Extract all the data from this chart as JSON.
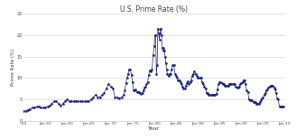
{
  "title": "U.S. Prime Rate (%)",
  "xlabel": "Year",
  "ylabel": "Prime Rate (%)",
  "line_color": "#1a237e",
  "bg_color": "#ffffff",
  "marker": ".",
  "markersize": 1.8,
  "linewidth": 0.5,
  "xlim_year": [
    1950,
    2010
  ],
  "ylim": [
    0,
    25
  ],
  "yticks": [
    0,
    5,
    10,
    15,
    20,
    25
  ],
  "xtick_years": [
    1950,
    1955,
    1960,
    1965,
    1970,
    1975,
    1980,
    1985,
    1990,
    1995,
    2000,
    2005,
    2010
  ],
  "xtick_labels": [
    "-50",
    "Jan-55",
    "Jan-60",
    "Jan-65",
    "Jan-70",
    "Jan-75",
    "Jan-80",
    "Jan-85",
    "Jan-90",
    "Jan-95",
    "Jan-00",
    "Jan-05",
    "Jan-10"
  ],
  "data": [
    [
      1950.0,
      2.25
    ],
    [
      1950.5,
      2.25
    ],
    [
      1951.0,
      2.5
    ],
    [
      1951.5,
      2.75
    ],
    [
      1952.0,
      3.0
    ],
    [
      1952.5,
      3.0
    ],
    [
      1953.0,
      3.25
    ],
    [
      1953.5,
      3.25
    ],
    [
      1954.0,
      3.0
    ],
    [
      1954.5,
      3.0
    ],
    [
      1955.0,
      3.0
    ],
    [
      1955.5,
      3.25
    ],
    [
      1956.0,
      3.5
    ],
    [
      1956.5,
      4.0
    ],
    [
      1957.0,
      4.5
    ],
    [
      1957.5,
      4.5
    ],
    [
      1958.0,
      4.0
    ],
    [
      1958.5,
      3.5
    ],
    [
      1959.0,
      4.0
    ],
    [
      1959.5,
      4.5
    ],
    [
      1960.0,
      5.0
    ],
    [
      1960.5,
      4.5
    ],
    [
      1961.0,
      4.5
    ],
    [
      1961.5,
      4.5
    ],
    [
      1962.0,
      4.5
    ],
    [
      1962.5,
      4.5
    ],
    [
      1963.0,
      4.5
    ],
    [
      1963.5,
      4.5
    ],
    [
      1964.0,
      4.5
    ],
    [
      1964.5,
      4.5
    ],
    [
      1965.0,
      4.5
    ],
    [
      1965.5,
      5.0
    ],
    [
      1966.0,
      5.5
    ],
    [
      1966.5,
      6.0
    ],
    [
      1967.0,
      5.5
    ],
    [
      1967.5,
      5.5
    ],
    [
      1968.0,
      6.0
    ],
    [
      1968.5,
      6.5
    ],
    [
      1969.0,
      7.5
    ],
    [
      1969.5,
      8.5
    ],
    [
      1970.0,
      8.0
    ],
    [
      1970.5,
      7.5
    ],
    [
      1971.0,
      5.5
    ],
    [
      1971.5,
      5.5
    ],
    [
      1972.0,
      5.25
    ],
    [
      1972.5,
      5.5
    ],
    [
      1973.0,
      6.0
    ],
    [
      1973.25,
      7.0
    ],
    [
      1973.5,
      8.75
    ],
    [
      1973.75,
      10.0
    ],
    [
      1974.0,
      11.0
    ],
    [
      1974.25,
      12.0
    ],
    [
      1974.5,
      12.0
    ],
    [
      1974.75,
      10.75
    ],
    [
      1975.0,
      9.0
    ],
    [
      1975.25,
      7.0
    ],
    [
      1975.5,
      7.0
    ],
    [
      1975.75,
      7.25
    ],
    [
      1976.0,
      6.75
    ],
    [
      1976.25,
      6.75
    ],
    [
      1976.5,
      6.75
    ],
    [
      1976.75,
      6.5
    ],
    [
      1977.0,
      6.25
    ],
    [
      1977.25,
      6.5
    ],
    [
      1977.5,
      7.0
    ],
    [
      1977.75,
      7.75
    ],
    [
      1978.0,
      8.0
    ],
    [
      1978.25,
      8.5
    ],
    [
      1978.5,
      9.0
    ],
    [
      1978.75,
      10.75
    ],
    [
      1979.0,
      11.75
    ],
    [
      1979.25,
      11.5
    ],
    [
      1979.5,
      12.0
    ],
    [
      1979.75,
      15.25
    ],
    [
      1980.0,
      17.5
    ],
    [
      1980.17,
      20.0
    ],
    [
      1980.33,
      20.0
    ],
    [
      1980.5,
      11.0
    ],
    [
      1980.67,
      13.0
    ],
    [
      1980.83,
      21.5
    ],
    [
      1981.0,
      20.5
    ],
    [
      1981.17,
      19.0
    ],
    [
      1981.33,
      20.5
    ],
    [
      1981.5,
      21.5
    ],
    [
      1981.58,
      21.5
    ],
    [
      1981.67,
      20.0
    ],
    [
      1981.83,
      17.0
    ],
    [
      1982.0,
      16.5
    ],
    [
      1982.17,
      17.0
    ],
    [
      1982.33,
      16.5
    ],
    [
      1982.5,
      15.0
    ],
    [
      1982.67,
      13.5
    ],
    [
      1982.83,
      12.0
    ],
    [
      1983.0,
      11.0
    ],
    [
      1983.25,
      10.5
    ],
    [
      1983.5,
      11.0
    ],
    [
      1983.75,
      11.0
    ],
    [
      1984.0,
      12.0
    ],
    [
      1984.25,
      13.0
    ],
    [
      1984.5,
      13.0
    ],
    [
      1984.75,
      11.0
    ],
    [
      1985.0,
      10.5
    ],
    [
      1985.25,
      10.0
    ],
    [
      1985.5,
      9.5
    ],
    [
      1985.75,
      9.5
    ],
    [
      1986.0,
      9.0
    ],
    [
      1986.25,
      8.5
    ],
    [
      1986.5,
      8.0
    ],
    [
      1986.75,
      7.5
    ],
    [
      1987.0,
      7.5
    ],
    [
      1987.25,
      8.25
    ],
    [
      1987.5,
      8.75
    ],
    [
      1987.75,
      9.25
    ],
    [
      1988.0,
      8.5
    ],
    [
      1988.25,
      9.0
    ],
    [
      1988.5,
      9.5
    ],
    [
      1988.75,
      10.5
    ],
    [
      1989.0,
      11.0
    ],
    [
      1989.25,
      11.5
    ],
    [
      1989.5,
      11.0
    ],
    [
      1989.75,
      10.5
    ],
    [
      1990.0,
      10.0
    ],
    [
      1990.25,
      10.0
    ],
    [
      1990.5,
      10.0
    ],
    [
      1990.75,
      10.0
    ],
    [
      1991.0,
      9.0
    ],
    [
      1991.25,
      8.5
    ],
    [
      1991.5,
      8.0
    ],
    [
      1991.75,
      7.5
    ],
    [
      1992.0,
      6.5
    ],
    [
      1992.25,
      6.5
    ],
    [
      1992.5,
      6.0
    ],
    [
      1992.75,
      6.0
    ],
    [
      1993.0,
      6.0
    ],
    [
      1993.25,
      6.0
    ],
    [
      1993.5,
      6.0
    ],
    [
      1993.75,
      6.0
    ],
    [
      1994.0,
      6.0
    ],
    [
      1994.25,
      6.25
    ],
    [
      1994.5,
      7.25
    ],
    [
      1994.75,
      8.5
    ],
    [
      1995.0,
      9.0
    ],
    [
      1995.25,
      9.0
    ],
    [
      1995.5,
      8.75
    ],
    [
      1995.75,
      8.5
    ],
    [
      1996.0,
      8.5
    ],
    [
      1996.25,
      8.25
    ],
    [
      1996.5,
      8.25
    ],
    [
      1996.75,
      8.25
    ],
    [
      1997.0,
      8.25
    ],
    [
      1997.25,
      8.5
    ],
    [
      1997.5,
      8.5
    ],
    [
      1997.75,
      8.5
    ],
    [
      1998.0,
      8.5
    ],
    [
      1998.25,
      8.5
    ],
    [
      1998.5,
      8.5
    ],
    [
      1998.75,
      8.0
    ],
    [
      1999.0,
      7.75
    ],
    [
      1999.25,
      7.75
    ],
    [
      1999.5,
      8.0
    ],
    [
      1999.75,
      8.5
    ],
    [
      2000.0,
      8.75
    ],
    [
      2000.25,
      9.0
    ],
    [
      2000.5,
      9.5
    ],
    [
      2000.75,
      9.5
    ],
    [
      2001.0,
      8.5
    ],
    [
      2001.25,
      7.0
    ],
    [
      2001.5,
      6.75
    ],
    [
      2001.75,
      5.0
    ],
    [
      2002.0,
      4.75
    ],
    [
      2002.25,
      4.75
    ],
    [
      2002.5,
      4.75
    ],
    [
      2002.75,
      4.25
    ],
    [
      2003.0,
      4.25
    ],
    [
      2003.25,
      4.25
    ],
    [
      2003.5,
      4.0
    ],
    [
      2003.75,
      4.0
    ],
    [
      2004.0,
      4.0
    ],
    [
      2004.25,
      4.25
    ],
    [
      2004.5,
      4.75
    ],
    [
      2004.75,
      5.25
    ],
    [
      2005.0,
      5.5
    ],
    [
      2005.25,
      6.0
    ],
    [
      2005.5,
      6.5
    ],
    [
      2005.75,
      7.0
    ],
    [
      2006.0,
      7.25
    ],
    [
      2006.25,
      7.75
    ],
    [
      2006.5,
      8.0
    ],
    [
      2006.75,
      8.25
    ],
    [
      2007.0,
      8.25
    ],
    [
      2007.25,
      8.25
    ],
    [
      2007.5,
      7.75
    ],
    [
      2007.75,
      7.25
    ],
    [
      2008.0,
      6.5
    ],
    [
      2008.25,
      5.25
    ],
    [
      2008.5,
      5.0
    ],
    [
      2008.75,
      3.25
    ],
    [
      2009.0,
      3.25
    ],
    [
      2009.25,
      3.25
    ],
    [
      2009.5,
      3.25
    ],
    [
      2009.75,
      3.25
    ]
  ]
}
